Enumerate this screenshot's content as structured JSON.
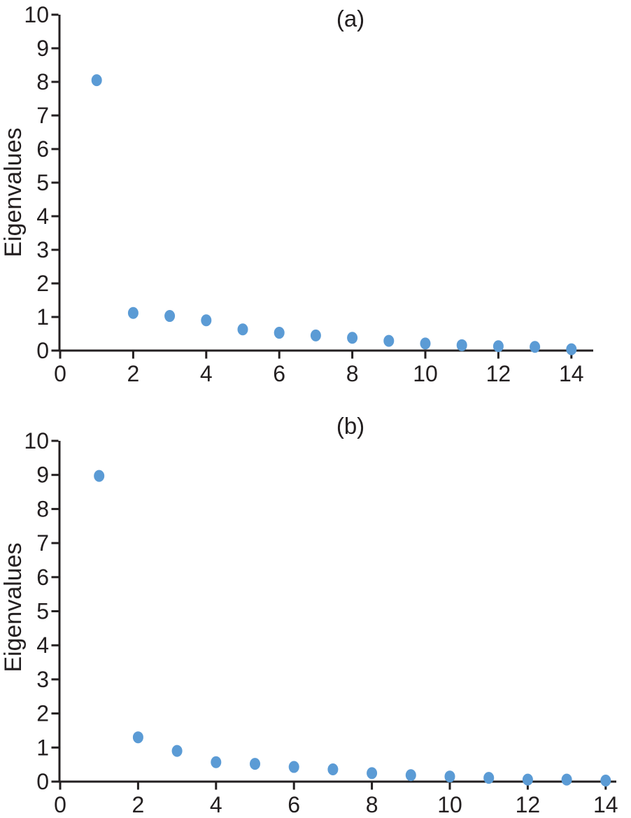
{
  "page": {
    "background": "#ffffff",
    "text_color": "#231f20",
    "axis_color": "#231f20",
    "dot_color": "#5b9bd5"
  },
  "chart_data": [
    {
      "id": "a",
      "type": "scatter",
      "title": "(a)",
      "xlabel": "",
      "ylabel": "Eigenvalues",
      "x": [
        1,
        2,
        3,
        4,
        5,
        6,
        7,
        8,
        9,
        10,
        11,
        12,
        13,
        14
      ],
      "values": [
        8.05,
        1.12,
        1.03,
        0.9,
        0.63,
        0.53,
        0.45,
        0.38,
        0.29,
        0.21,
        0.16,
        0.13,
        0.11,
        0.04
      ],
      "xlim": [
        0,
        14.6
      ],
      "ylim": [
        0,
        10
      ],
      "xticks": [
        0,
        2,
        4,
        6,
        8,
        10,
        12,
        14
      ],
      "yticks": [
        0,
        1,
        2,
        3,
        4,
        5,
        6,
        7,
        8,
        9,
        10
      ],
      "grid": false,
      "legend": null,
      "marker": "circle"
    },
    {
      "id": "b",
      "type": "scatter",
      "title": "(b)",
      "xlabel": "",
      "ylabel": "Eigenvalues",
      "x": [
        1,
        2,
        3,
        4,
        5,
        6,
        7,
        8,
        9,
        10,
        11,
        12,
        13,
        14
      ],
      "values": [
        8.97,
        1.3,
        0.9,
        0.57,
        0.52,
        0.43,
        0.36,
        0.25,
        0.19,
        0.15,
        0.11,
        0.06,
        0.06,
        0.03
      ],
      "xlim": [
        0,
        14.3
      ],
      "ylim": [
        0,
        10
      ],
      "xticks": [
        0,
        2,
        4,
        6,
        8,
        10,
        12,
        14
      ],
      "yticks": [
        0,
        1,
        2,
        3,
        4,
        5,
        6,
        7,
        8,
        9,
        10
      ],
      "grid": false,
      "legend": null,
      "marker": "circle"
    }
  ]
}
